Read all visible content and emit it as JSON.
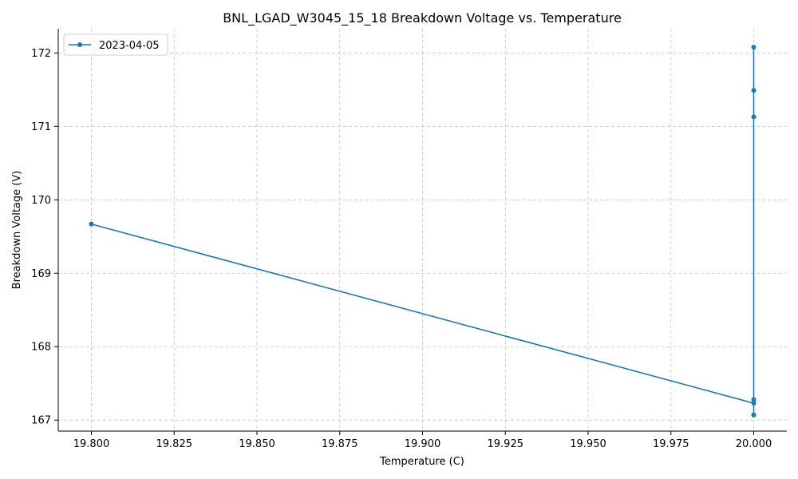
{
  "chart_data": {
    "type": "line",
    "title": "BNL_LGAD_W3045_15_18 Breakdown Voltage vs. Temperature",
    "xlabel": "Temperature (C)",
    "ylabel": "Breakdown Voltage (V)",
    "xlim": [
      19.79,
      20.01
    ],
    "ylim": [
      166.85,
      172.33
    ],
    "xticks": [
      19.8,
      19.825,
      19.85,
      19.875,
      19.9,
      19.925,
      19.95,
      19.975,
      20.0
    ],
    "xtick_labels": [
      "19.800",
      "19.825",
      "19.850",
      "19.875",
      "19.900",
      "19.925",
      "19.950",
      "19.975",
      "20.000"
    ],
    "yticks": [
      167,
      168,
      169,
      170,
      171,
      172
    ],
    "ytick_labels": [
      "167",
      "168",
      "169",
      "170",
      "171",
      "172"
    ],
    "grid": true,
    "legend_position": "top-left",
    "series": [
      {
        "name": "2023-04-05",
        "color": "#1f77b4",
        "marker": "circle",
        "x": [
          19.8,
          20.0,
          20.0,
          20.0,
          20.0,
          20.0,
          20.0,
          20.0
        ],
        "y": [
          169.67,
          167.23,
          167.28,
          167.07,
          171.13,
          171.49,
          172.08,
          167.07
        ]
      }
    ]
  }
}
